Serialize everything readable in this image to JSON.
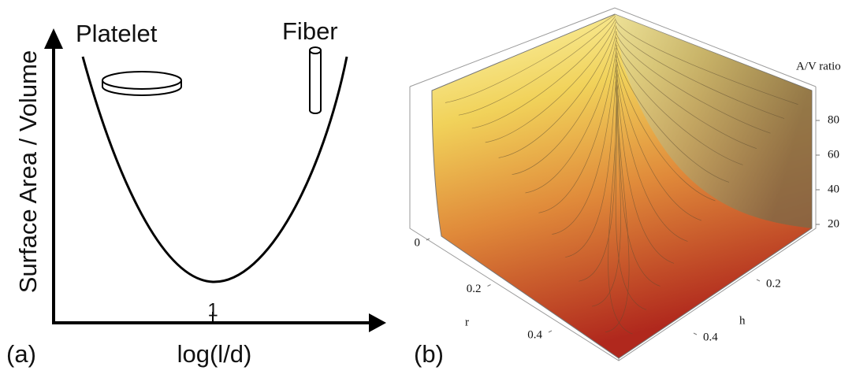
{
  "chart_data": [
    {
      "type": "schematic",
      "panel_label": "(a)",
      "x_label": "log(l/d)",
      "y_label": "Surface Area / Volume",
      "xticks": [
        1
      ],
      "annotations": [
        "Platelet",
        "Fiber"
      ]
    },
    {
      "type": "surface",
      "panel_label": "(b)",
      "z_label": "A/V ratio",
      "x_label": "r",
      "y_label": "h",
      "xticks": [
        0,
        0.2,
        0.4
      ],
      "yticks": [
        0.2,
        0.4
      ],
      "zticks": [
        20,
        40,
        60,
        80
      ]
    }
  ]
}
